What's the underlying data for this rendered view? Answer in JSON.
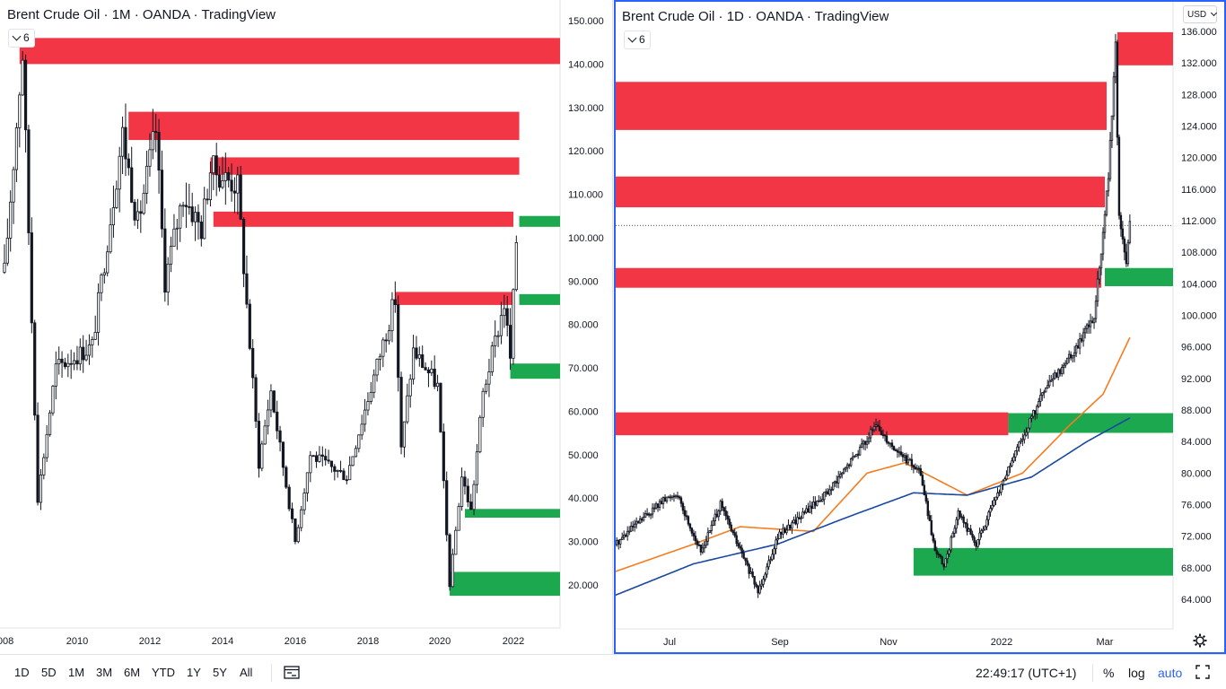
{
  "colors": {
    "bull_candle": "#ffffff",
    "bear_candle": "#131722",
    "resistance_zone": "#f23645",
    "support_zone": "#1ba84e",
    "ma_fast": "#f57c1f",
    "ma_slow": "#1848a0",
    "active_border": "#2962ff"
  },
  "left_chart": {
    "title": "Brent Crude Oil · 1M · OANDA · TradingView",
    "badge": "6",
    "badge_icon": "chevron-down-icon"
  },
  "right_chart": {
    "title": "Brent Crude Oil · 1D · OANDA · TradingView",
    "badge": "6",
    "badge_icon": "chevron-down-icon",
    "currency": "USD",
    "settings_icon": "gear-icon"
  },
  "chart_data": [
    {
      "type": "candlestick",
      "title": "Brent Crude Oil · 1M · OANDA · TradingView",
      "timeframe": "1M",
      "ylim": [
        10,
        155
      ],
      "y_ticks": [
        "150.000",
        "140.000",
        "130.000",
        "120.000",
        "110.000",
        "100.000",
        "90.000",
        "80.000",
        "70.000",
        "60.000",
        "50.000",
        "40.000",
        "30.000",
        "20.000"
      ],
      "x_ticks": [
        "008",
        "2010",
        "2012",
        "2014",
        "2016",
        "2018",
        "2020",
        "2022"
      ],
      "price_path": [
        {
          "date": "2008-01",
          "price": 92
        },
        {
          "date": "2008-07",
          "price": 143
        },
        {
          "date": "2008-12",
          "price": 40
        },
        {
          "date": "2009-06",
          "price": 70
        },
        {
          "date": "2010-06",
          "price": 75
        },
        {
          "date": "2011-04",
          "price": 124
        },
        {
          "date": "2011-09",
          "price": 103
        },
        {
          "date": "2012-03",
          "price": 125
        },
        {
          "date": "2012-06",
          "price": 90
        },
        {
          "date": "2012-12",
          "price": 110
        },
        {
          "date": "2013-06",
          "price": 102
        },
        {
          "date": "2013-09",
          "price": 116
        },
        {
          "date": "2014-06",
          "price": 112
        },
        {
          "date": "2015-01",
          "price": 48
        },
        {
          "date": "2015-05",
          "price": 65
        },
        {
          "date": "2016-01",
          "price": 30
        },
        {
          "date": "2016-06",
          "price": 50
        },
        {
          "date": "2017-06",
          "price": 45
        },
        {
          "date": "2018-10",
          "price": 86
        },
        {
          "date": "2018-12",
          "price": 51
        },
        {
          "date": "2019-04",
          "price": 74
        },
        {
          "date": "2019-12",
          "price": 66
        },
        {
          "date": "2020-04",
          "price": 20
        },
        {
          "date": "2020-08",
          "price": 45
        },
        {
          "date": "2020-11",
          "price": 37
        },
        {
          "date": "2021-03",
          "price": 64
        },
        {
          "date": "2021-10",
          "price": 85
        },
        {
          "date": "2021-12",
          "price": 72
        },
        {
          "date": "2022-02",
          "price": 100
        },
        {
          "date": "2022-03",
          "price": 112
        }
      ],
      "zones": [
        {
          "kind": "resistance",
          "x_from": "2008-06",
          "x_to": "right",
          "y_low": 140,
          "y_high": 146
        },
        {
          "kind": "resistance",
          "x_from": "2011-06",
          "x_to": "2022-03",
          "y_low": 122.5,
          "y_high": 129
        },
        {
          "kind": "resistance",
          "x_from": "2013-09",
          "x_to": "2022-03",
          "y_low": 114.5,
          "y_high": 118.5
        },
        {
          "kind": "resistance",
          "x_from": "2013-10",
          "x_to": "2022-01",
          "y_low": 102.5,
          "y_high": 106
        },
        {
          "kind": "support",
          "x_from": "2022-03",
          "x_to": "right",
          "y_low": 102.5,
          "y_high": 105
        },
        {
          "kind": "resistance",
          "x_from": "2018-10",
          "x_to": "2022-01",
          "y_low": 84.5,
          "y_high": 87.5
        },
        {
          "kind": "support",
          "x_from": "2022-03",
          "x_to": "right",
          "y_low": 84.5,
          "y_high": 87
        },
        {
          "kind": "support",
          "x_from": "2021-12",
          "x_to": "right",
          "y_low": 67.5,
          "y_high": 71
        },
        {
          "kind": "support",
          "x_from": "2020-09",
          "x_to": "right",
          "y_low": 35.5,
          "y_high": 37.5
        },
        {
          "kind": "support",
          "x_from": "2020-04",
          "x_to": "right",
          "y_low": 17.5,
          "y_high": 23
        }
      ]
    },
    {
      "type": "candlestick",
      "title": "Brent Crude Oil · 1D · OANDA · TradingView",
      "timeframe": "1D",
      "ylim": [
        61.5,
        137.5
      ],
      "y_ticks": [
        "136.000",
        "132.000",
        "128.000",
        "124.000",
        "120.000",
        "116.000",
        "112.000",
        "108.000",
        "104.000",
        "100.000",
        "96.000",
        "92.000",
        "88.000",
        "84.000",
        "80.000",
        "76.000",
        "72.000",
        "68.000",
        "64.000"
      ],
      "x_ticks": [
        "Jul",
        "Sep",
        "Nov",
        "2022",
        "Mar"
      ],
      "last_price": 111.4,
      "price_path": [
        {
          "date": "2021-06-01",
          "price": 71
        },
        {
          "date": "2021-06-25",
          "price": 76
        },
        {
          "date": "2021-07-05",
          "price": 77.5
        },
        {
          "date": "2021-07-19",
          "price": 70
        },
        {
          "date": "2021-07-30",
          "price": 76
        },
        {
          "date": "2021-08-20",
          "price": 65
        },
        {
          "date": "2021-08-31",
          "price": 72
        },
        {
          "date": "2021-09-30",
          "price": 78
        },
        {
          "date": "2021-10-25",
          "price": 86
        },
        {
          "date": "2021-11-05",
          "price": 83
        },
        {
          "date": "2021-11-19",
          "price": 80
        },
        {
          "date": "2021-11-26",
          "price": 71
        },
        {
          "date": "2021-12-02",
          "price": 68
        },
        {
          "date": "2021-12-10",
          "price": 75
        },
        {
          "date": "2021-12-20",
          "price": 71
        },
        {
          "date": "2022-01-10",
          "price": 82
        },
        {
          "date": "2022-01-26",
          "price": 90
        },
        {
          "date": "2022-02-14",
          "price": 96
        },
        {
          "date": "2022-02-24",
          "price": 100
        },
        {
          "date": "2022-03-01",
          "price": 110
        },
        {
          "date": "2022-03-04",
          "price": 118
        },
        {
          "date": "2022-03-08",
          "price": 134
        },
        {
          "date": "2022-03-10",
          "price": 112
        },
        {
          "date": "2022-03-14",
          "price": 107
        },
        {
          "date": "2022-03-16",
          "price": 111.4
        }
      ],
      "moving_averages": [
        {
          "color": "orange",
          "points": [
            {
              "date": "2021-06-01",
              "price": 67.5
            },
            {
              "date": "2021-07-15",
              "price": 71
            },
            {
              "date": "2021-08-10",
              "price": 73.2
            },
            {
              "date": "2021-09-20",
              "price": 72.6
            },
            {
              "date": "2021-10-20",
              "price": 80
            },
            {
              "date": "2021-11-10",
              "price": 81.3
            },
            {
              "date": "2021-12-15",
              "price": 77.2
            },
            {
              "date": "2022-01-15",
              "price": 80
            },
            {
              "date": "2022-02-10",
              "price": 86
            },
            {
              "date": "2022-03-01",
              "price": 90
            },
            {
              "date": "2022-03-16",
              "price": 97.2
            }
          ]
        },
        {
          "color": "blue",
          "points": [
            {
              "date": "2021-06-01",
              "price": 64.5
            },
            {
              "date": "2021-07-15",
              "price": 68.5
            },
            {
              "date": "2021-08-31",
              "price": 71
            },
            {
              "date": "2021-10-10",
              "price": 74.5
            },
            {
              "date": "2021-11-15",
              "price": 77.5
            },
            {
              "date": "2021-12-15",
              "price": 77.2
            },
            {
              "date": "2022-01-20",
              "price": 79.5
            },
            {
              "date": "2022-02-20",
              "price": 84
            },
            {
              "date": "2022-03-16",
              "price": 87
            }
          ]
        }
      ],
      "zones": [
        {
          "kind": "resistance",
          "x_from": "2022-03-09",
          "x_to": "right",
          "y_low": 131.7,
          "y_high": 135.9
        },
        {
          "kind": "resistance",
          "x_from": "left",
          "x_to": "2022-03-03",
          "y_low": 123.5,
          "y_high": 129.6
        },
        {
          "kind": "resistance",
          "x_from": "left",
          "x_to": "2022-03-02",
          "y_low": 113.7,
          "y_high": 117.6
        },
        {
          "kind": "resistance",
          "x_from": "left",
          "x_to": "2022-02-28",
          "y_low": 103.5,
          "y_high": 106
        },
        {
          "kind": "support",
          "x_from": "2022-03-02",
          "x_to": "right",
          "y_low": 103.7,
          "y_high": 106
        },
        {
          "kind": "resistance",
          "x_from": "left",
          "x_to": "2022-01-07",
          "y_low": 84.8,
          "y_high": 87.7
        },
        {
          "kind": "support",
          "x_from": "2022-01-07",
          "x_to": "right",
          "y_low": 85.1,
          "y_high": 87.6
        },
        {
          "kind": "support",
          "x_from": "2021-11-15",
          "x_to": "right",
          "y_low": 67,
          "y_high": 70.5
        }
      ]
    }
  ],
  "bottom_bar": {
    "ranges": [
      "1D",
      "5D",
      "1M",
      "3M",
      "6M",
      "YTD",
      "1Y",
      "5Y",
      "All"
    ],
    "compare_icon": "calendar-range-icon",
    "clock": "22:49:17 (UTC+1)",
    "percent_label": "%",
    "log_label": "log",
    "auto_label": "auto",
    "fullscreen_icon": "fullscreen-icon"
  }
}
